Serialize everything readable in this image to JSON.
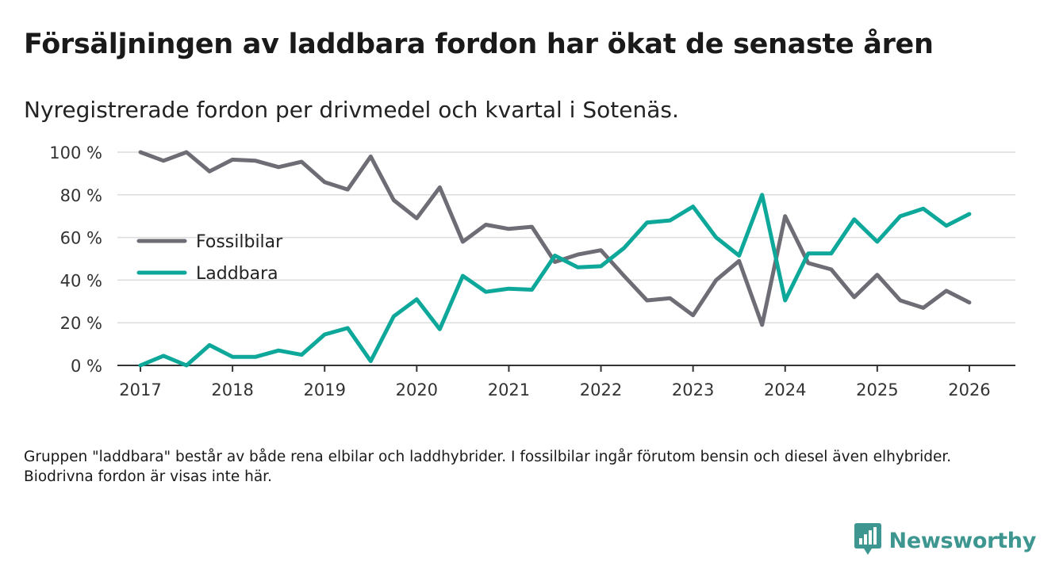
{
  "title": "Försäljningen av laddbara fordon har ökat de senaste åren",
  "subtitle": "Nyregistrerade fordon per drivmedel och kvartal i Sotenäs.",
  "footnote": "Gruppen \"laddbara\" består av både rena elbilar och laddhybrider. I fossilbilar ingår förutom bensin och diesel även elhybrider. Biodrivna fordon är visas inte här.",
  "brand": {
    "name": "Newsworthy",
    "color": "#3d968f",
    "icon": "bar-chart-logo-icon"
  },
  "chart_data": {
    "type": "line",
    "title": "Försäljningen av laddbara fordon har ökat de senaste åren",
    "xlabel": "",
    "ylabel": "",
    "ylim": [
      0,
      100
    ],
    "xlim": [
      2016.75,
      2026.5
    ],
    "y_ticks": [
      0,
      20,
      40,
      60,
      80,
      100
    ],
    "y_tick_labels": [
      "0 %",
      "20 %",
      "40 %",
      "60 %",
      "80 %",
      "100 %"
    ],
    "x_ticks": [
      2017,
      2018,
      2019,
      2020,
      2021,
      2022,
      2023,
      2024,
      2025,
      2026
    ],
    "x_tick_labels": [
      "2017",
      "2018",
      "2019",
      "2020",
      "2021",
      "2022",
      "2023",
      "2024",
      "2025",
      "2026"
    ],
    "grid": true,
    "legend_position": "left-middle",
    "x": [
      2017,
      2017.25,
      2017.5,
      2017.75,
      2018,
      2018.25,
      2018.5,
      2018.75,
      2019,
      2019.25,
      2019.5,
      2019.75,
      2020,
      2020.25,
      2020.5,
      2020.75,
      2021,
      2021.25,
      2021.5,
      2021.75,
      2022,
      2022.25,
      2022.5,
      2022.75,
      2023,
      2023.25,
      2023.5,
      2023.75,
      2024,
      2024.25,
      2024.5,
      2024.75,
      2025,
      2025.25,
      2025.5,
      2025.75,
      2026
    ],
    "series": [
      {
        "name": "Fossilbilar",
        "color": "#6e6d75",
        "values": [
          100,
          96,
          100,
          91,
          96.5,
          96,
          93,
          95.5,
          86,
          82.5,
          98,
          77.5,
          69,
          83.5,
          58,
          66,
          64,
          65,
          48.5,
          52,
          54,
          42,
          30.5,
          31.5,
          23.5,
          40,
          49,
          19,
          70,
          48,
          45,
          32,
          42.5,
          30.5,
          27,
          35,
          29.5
        ]
      },
      {
        "name": "Laddbara",
        "color": "#0ea89b",
        "values": [
          0,
          4.5,
          0,
          9.5,
          4,
          4,
          7,
          5,
          14.5,
          17.5,
          2,
          23,
          31,
          17,
          42,
          34.5,
          36,
          35.5,
          51.5,
          46,
          46.5,
          55,
          67,
          68,
          74.5,
          60,
          51.5,
          80,
          30.5,
          52.5,
          52.5,
          68.5,
          58,
          70,
          73.5,
          65.5,
          71
        ]
      }
    ]
  }
}
